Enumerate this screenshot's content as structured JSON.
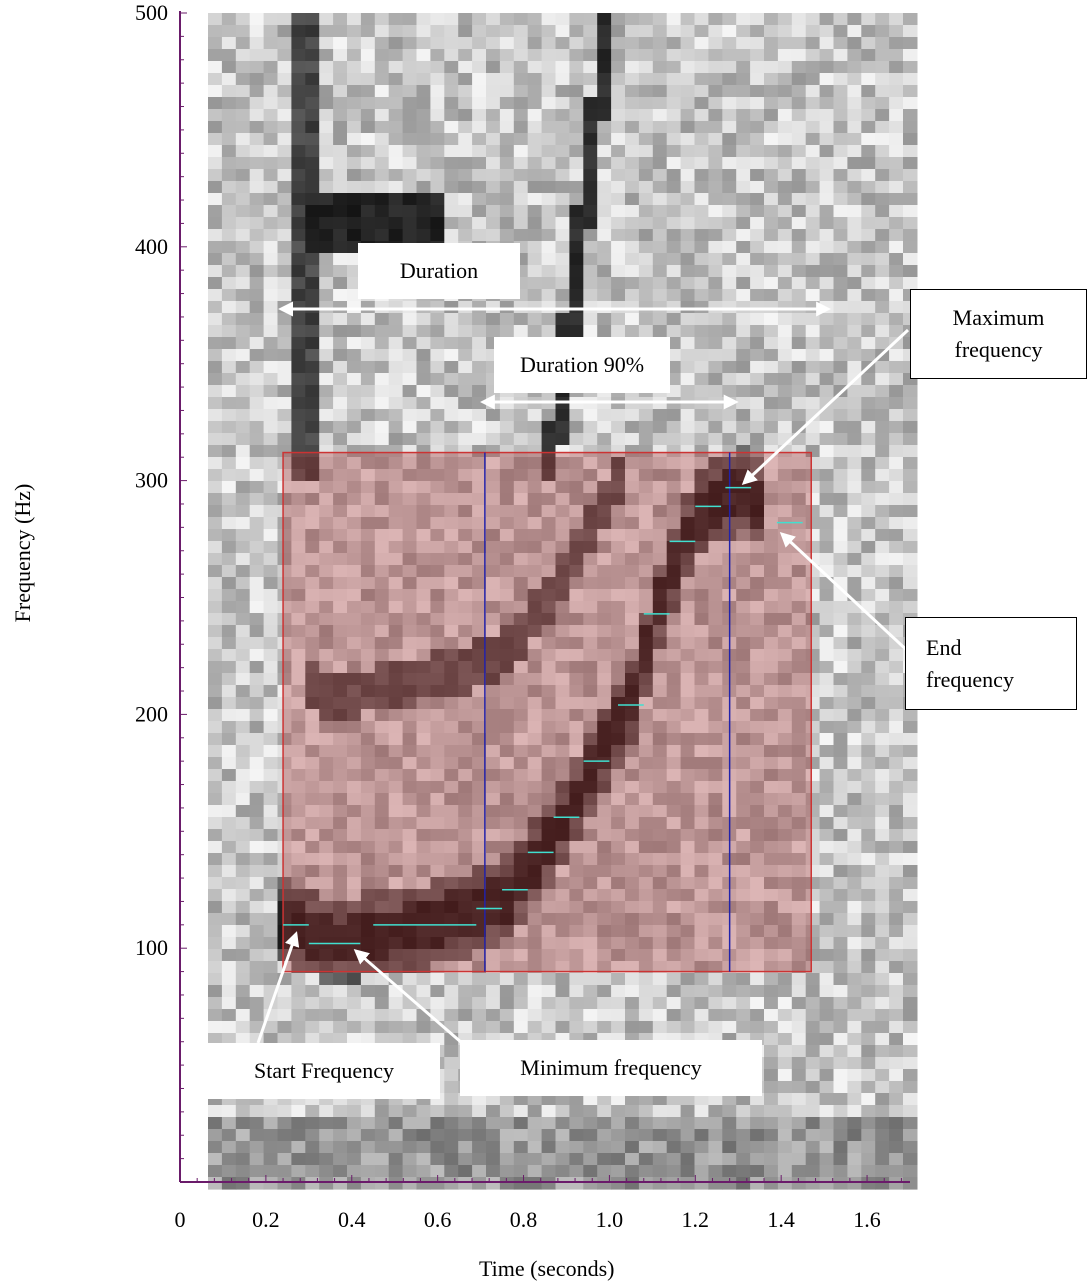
{
  "chart_data": {
    "type": "heatmap",
    "subtype": "spectrogram",
    "xlabel": "Time (seconds)",
    "ylabel": "Frequency (Hz)",
    "xlim": [
      0,
      1.7
    ],
    "ylim": [
      0,
      500
    ],
    "x_ticks": [
      "0",
      "0.2",
      "0.4",
      "0.6",
      "0.8",
      "1.0",
      "1.2",
      "1.4",
      "1.6"
    ],
    "y_ticks": [
      "100",
      "200",
      "300",
      "400",
      "500"
    ],
    "x_tick_values": [
      0,
      0.2,
      0.4,
      0.6,
      0.8,
      1.0,
      1.2,
      1.4,
      1.6
    ],
    "y_tick_values": [
      100,
      200,
      300,
      400,
      500
    ],
    "grid": false,
    "colormap": "grayscale",
    "selection_box": {
      "t_start": 0.24,
      "t_end": 1.47,
      "f_min": 90,
      "f_max": 312,
      "color": "#cc3333"
    },
    "duration_90_markers": {
      "t_start": 0.71,
      "t_end": 1.28,
      "color": "#2222aa"
    },
    "contour_points": [
      {
        "t": 0.27,
        "f": 110
      },
      {
        "t": 0.36,
        "f": 102
      },
      {
        "t": 0.57,
        "f": 110
      },
      {
        "t": 0.72,
        "f": 117
      },
      {
        "t": 0.78,
        "f": 125
      },
      {
        "t": 0.84,
        "f": 141
      },
      {
        "t": 0.9,
        "f": 156
      },
      {
        "t": 0.97,
        "f": 180
      },
      {
        "t": 1.05,
        "f": 204
      },
      {
        "t": 1.11,
        "f": 243
      },
      {
        "t": 1.17,
        "f": 274
      },
      {
        "t": 1.23,
        "f": 289
      },
      {
        "t": 1.3,
        "f": 297
      },
      {
        "t": 1.42,
        "f": 282
      }
    ],
    "contour_color": "#40e0d0",
    "annotations": {
      "duration": "Duration",
      "duration_90": "Duration 90%",
      "maximum_frequency": "Maximum frequency",
      "end_frequency": "End frequency",
      "start_frequency": "Start Frequency",
      "minimum_frequency": "Minimum frequency"
    }
  },
  "colors": {
    "axis": "#6a1b6a",
    "arrow": "#ffffff",
    "selection": "#cc3333",
    "duration_lines": "#2222aa",
    "contour": "#40e0d0"
  }
}
